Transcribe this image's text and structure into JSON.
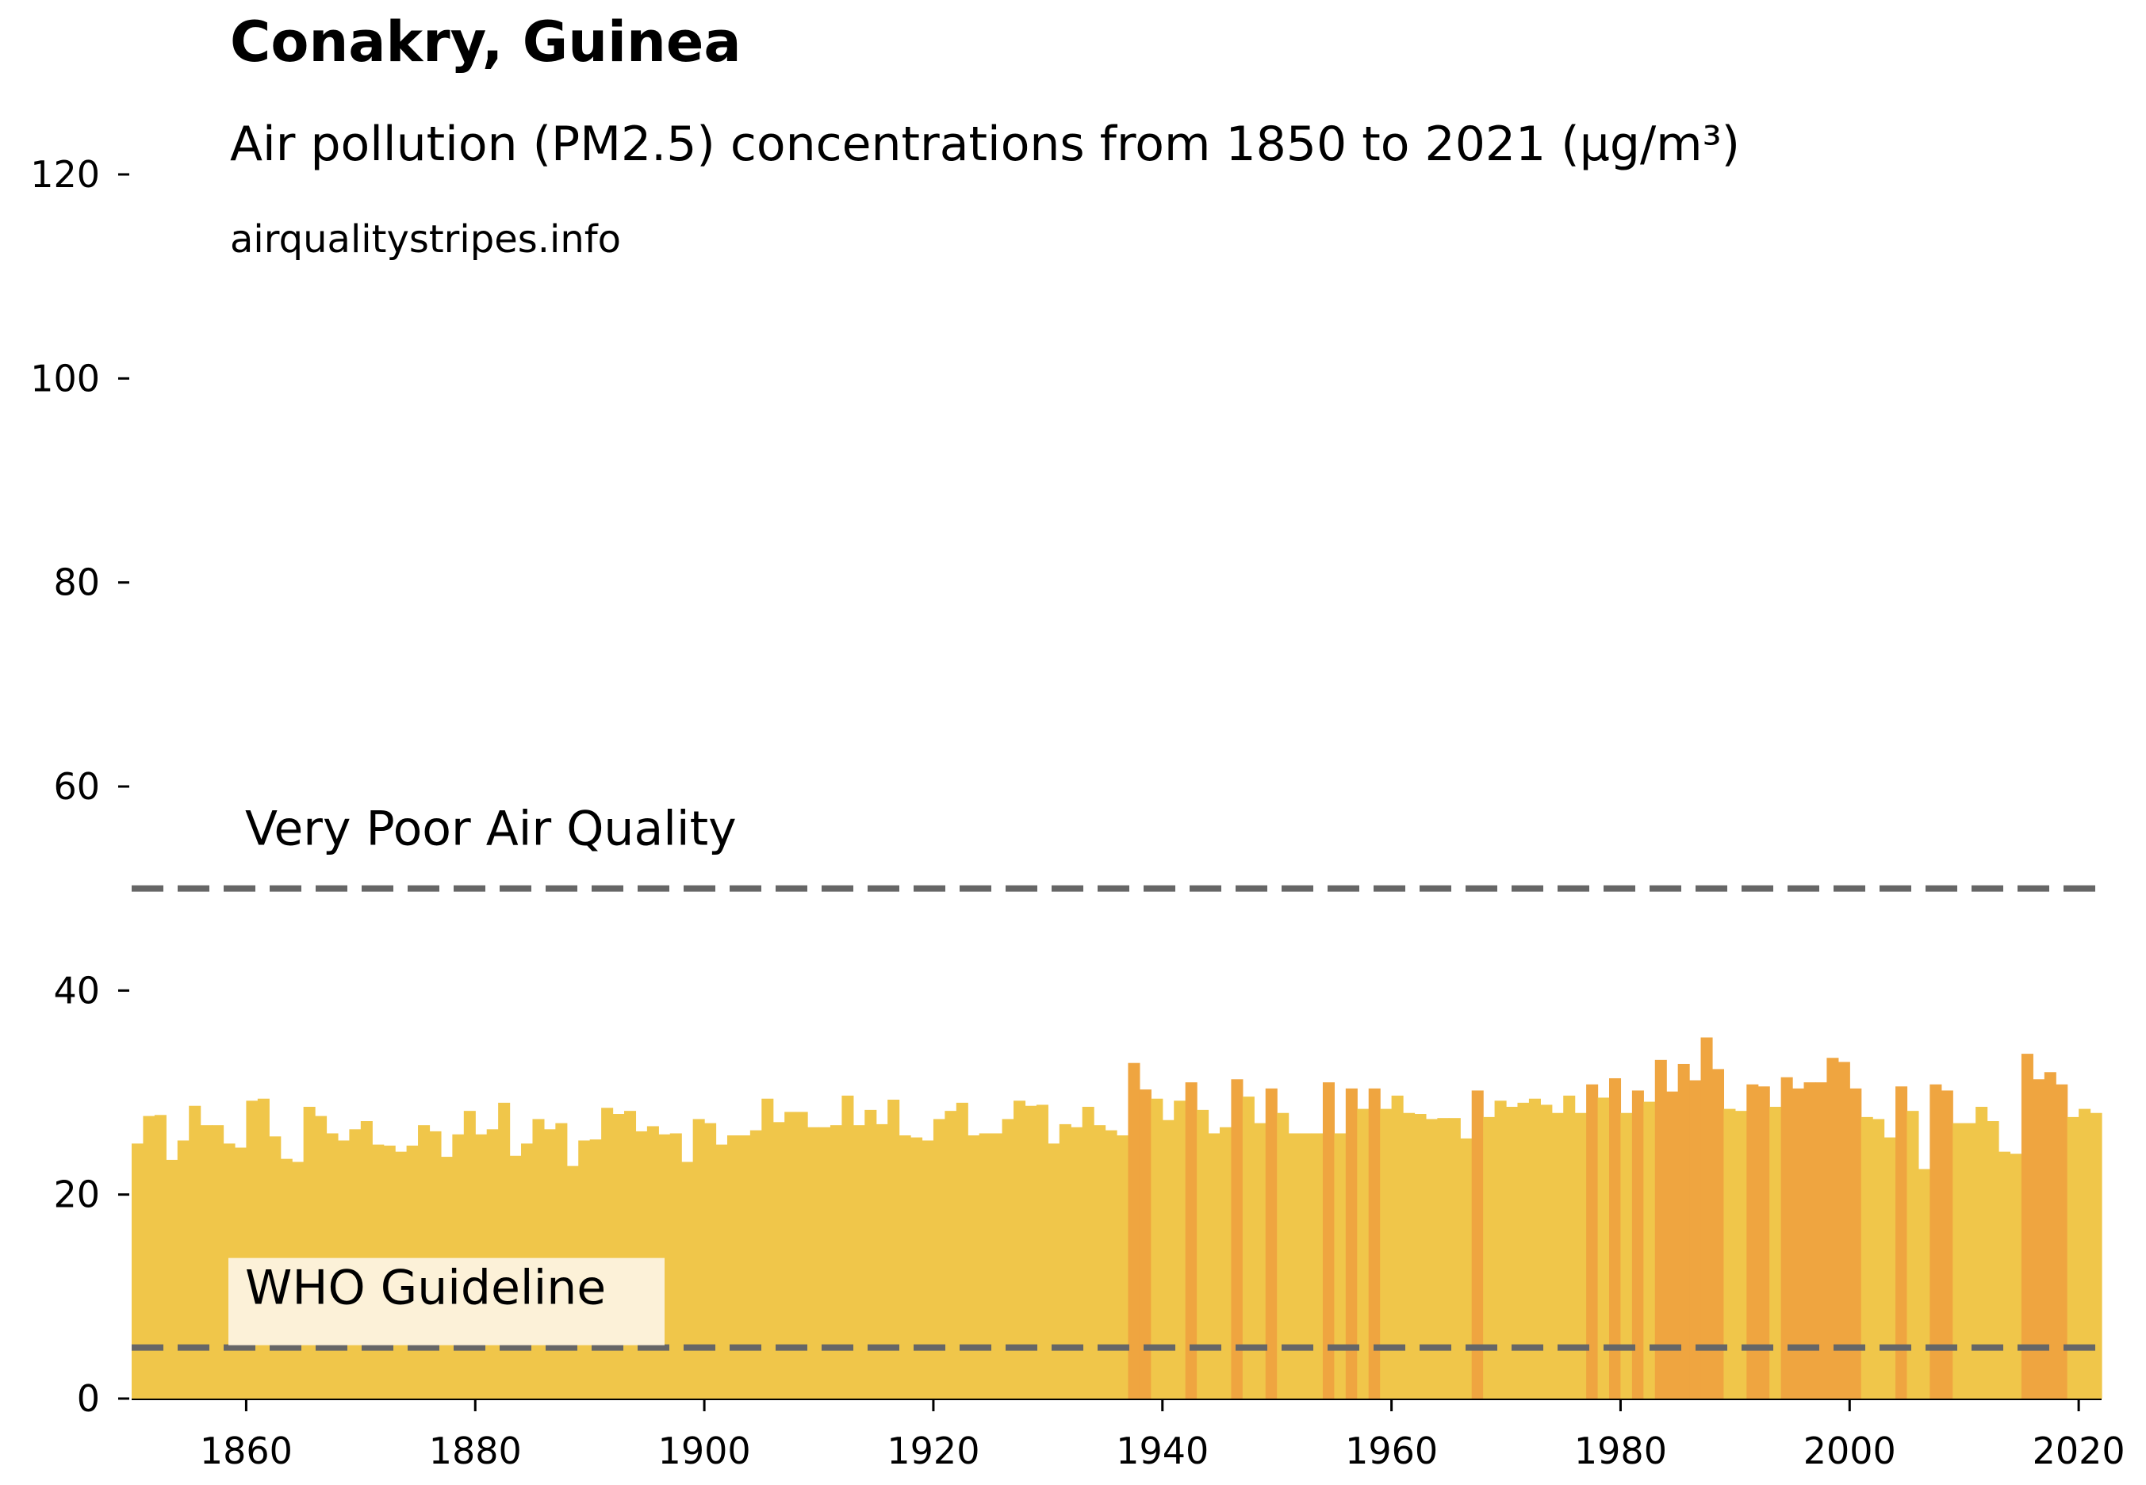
{
  "chart_data": {
    "type": "bar",
    "title": "Conakry, Guinea",
    "subtitle": "Air pollution (PM2.5) concentrations from 1850 to 2021 (µg/m³)",
    "source": "airqualitystripes.info",
    "xlabel": "",
    "ylabel": "",
    "xlim": [
      1850,
      2022
    ],
    "ylim": [
      0,
      120
    ],
    "grid": false,
    "x_ticks": [
      1860,
      1880,
      1900,
      1920,
      1940,
      1960,
      1980,
      2000,
      2020
    ],
    "y_ticks": [
      0,
      20,
      40,
      60,
      80,
      100,
      120
    ],
    "reference_lines": [
      {
        "label": "Very Poor Air Quality",
        "value": 50,
        "color": "#666666"
      },
      {
        "label": "WHO Guideline",
        "value": 5,
        "color": "#666666"
      }
    ],
    "colors": {
      "moderate": "#f0c64a",
      "high": "#efa540",
      "threshold_high": 30,
      "label_background": "#fcf1d8"
    },
    "series": [
      {
        "start_year": 1850,
        "values": [
          25.0,
          27.7,
          27.8,
          23.4,
          25.3,
          28.7,
          26.8,
          26.8,
          25.0,
          24.6,
          29.2,
          29.4,
          25.7,
          23.5,
          23.2,
          28.6,
          27.7,
          26.0,
          25.3,
          26.4,
          27.2,
          24.9,
          24.8,
          24.2,
          24.8,
          26.8,
          26.2,
          23.7,
          25.9,
          28.2,
          25.9,
          26.4,
          29.0,
          23.8,
          25.0,
          27.4,
          26.4,
          27.0,
          22.8,
          25.3,
          25.4,
          28.5,
          27.9,
          28.2,
          26.2,
          26.7,
          25.9,
          26.0,
          23.2,
          27.4,
          27.0,
          24.9,
          25.8,
          25.8,
          26.3,
          29.4,
          27.1,
          28.1,
          28.1,
          26.6,
          26.6,
          26.8,
          29.7,
          26.8,
          28.3,
          26.9,
          29.3,
          25.8,
          25.6,
          25.3,
          27.4,
          28.2,
          29.0,
          25.8,
          26.0,
          26.0,
          27.4,
          29.2,
          28.7,
          28.8,
          25.0,
          26.9,
          26.6,
          28.6,
          26.8,
          26.3,
          25.8,
          32.9,
          30.3,
          29.4,
          27.3,
          29.2,
          31.0,
          28.3,
          26.0,
          26.6,
          31.3,
          29.6,
          27.0,
          30.4,
          28.0,
          26.0,
          26.0,
          26.0,
          31.0,
          26.0,
          30.4,
          28.4,
          30.4,
          28.4,
          29.7,
          28.0,
          27.9,
          27.4,
          27.5,
          27.5,
          25.5,
          30.2,
          27.6,
          29.2,
          28.6,
          29.0,
          29.4,
          28.8,
          28.0,
          29.7,
          28.0,
          30.8,
          29.5,
          31.4,
          28.0,
          30.2,
          29.1,
          33.2,
          30.1,
          32.8,
          31.2,
          35.4,
          32.3,
          28.4,
          28.2,
          30.8,
          30.6,
          28.6,
          31.5,
          30.4,
          31.0,
          31.0,
          33.4,
          33.0,
          30.4,
          27.6,
          27.4,
          25.6,
          30.6,
          28.2,
          22.5,
          30.8,
          30.2,
          27.0,
          27.0,
          28.6,
          27.2,
          24.2,
          24.0,
          33.8,
          31.3,
          32.0,
          30.8,
          27.6,
          28.4,
          28.0
        ]
      }
    ]
  }
}
